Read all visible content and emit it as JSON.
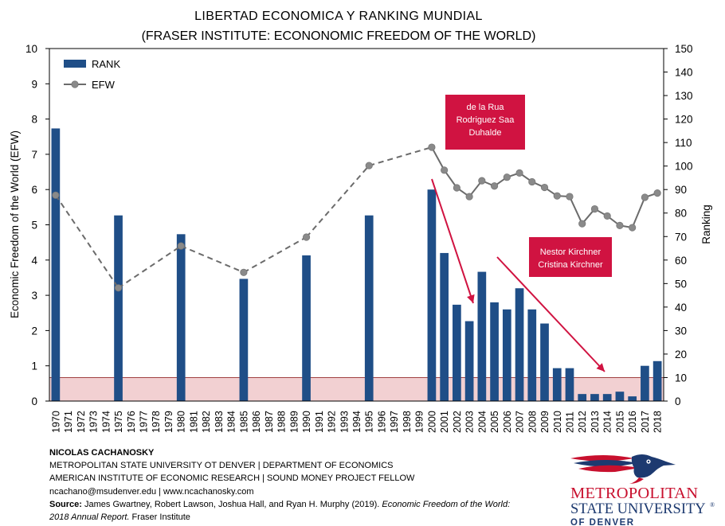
{
  "chart_data": {
    "type": "bar",
    "title": "LIBERTAD  ECONOMICA Y RANKING MUNDIAL",
    "subtitle": "(FRASER INSTITUTE: ECONONOMIC FREEDOM OF THE WORLD)",
    "ylabel_left": "Economic Freedom of the World (EFW)",
    "ylabel_right": "Ranking",
    "ylim_left": [
      0,
      10
    ],
    "ylim_right": [
      0,
      150
    ],
    "yticks_left": [
      "0",
      "1",
      "2",
      "3",
      "4",
      "5",
      "6",
      "7",
      "8",
      "9",
      "10"
    ],
    "yticks_right": [
      "0",
      "10",
      "20",
      "30",
      "40",
      "50",
      "60",
      "70",
      "80",
      "90",
      "100",
      "110",
      "120",
      "130",
      "140",
      "150"
    ],
    "grid": false,
    "legend_position": "top-left",
    "categories": [
      "1970",
      "1971",
      "1972",
      "1973",
      "1974",
      "1975",
      "1976",
      "1977",
      "1978",
      "1979",
      "1980",
      "1981",
      "1982",
      "1983",
      "1984",
      "1985",
      "1986",
      "1987",
      "1988",
      "1989",
      "1990",
      "1991",
      "1992",
      "1993",
      "1994",
      "1995",
      "1996",
      "1997",
      "1998",
      "1999",
      "2000",
      "2001",
      "2002",
      "2003",
      "2004",
      "2005",
      "2006",
      "2007",
      "2008",
      "2009",
      "2010",
      "2011",
      "2012",
      "2013",
      "2014",
      "2015",
      "2016",
      "2017",
      "2018"
    ],
    "series": [
      {
        "name": "RANK",
        "axis": "right",
        "kind": "bar",
        "color": "#1f4e87",
        "values": [
          116,
          null,
          null,
          null,
          null,
          79,
          null,
          null,
          null,
          null,
          71,
          null,
          null,
          null,
          null,
          52,
          null,
          null,
          null,
          null,
          62,
          null,
          null,
          null,
          null,
          79,
          null,
          null,
          null,
          null,
          90,
          63,
          41,
          34,
          55,
          42,
          39,
          48,
          39,
          33,
          14,
          14,
          3,
          3,
          3,
          4,
          2,
          15,
          17
        ]
      },
      {
        "name": "EFW",
        "axis": "left",
        "kind": "line",
        "color": "#8a8a8a",
        "values": [
          5.84,
          null,
          null,
          null,
          null,
          3.21,
          null,
          null,
          null,
          null,
          4.4,
          null,
          null,
          null,
          null,
          3.65,
          null,
          null,
          null,
          null,
          4.65,
          null,
          null,
          null,
          null,
          6.68,
          null,
          null,
          null,
          null,
          7.2,
          6.55,
          6.05,
          5.8,
          6.25,
          6.1,
          6.35,
          6.47,
          6.22,
          6.06,
          5.82,
          5.8,
          5.03,
          5.45,
          5.25,
          4.98,
          4.92,
          5.78,
          5.9
        ]
      }
    ],
    "reference_band": {
      "from": 0,
      "to": 10,
      "axis": "right",
      "color": "#f2d0d2"
    },
    "annotations": [
      {
        "lines": [
          "de la Rua",
          "Rodriguez Saa",
          "Duhalde"
        ],
        "color": "#d01341"
      },
      {
        "lines": [
          "Nestor Kirchner",
          "Cristina Kirchner"
        ],
        "color": "#d01341"
      }
    ]
  },
  "footer": {
    "author": "NICOLAS CACHANOSKY",
    "line1": "METROPOLITAN  STATE UNIVERSITY  OT DENVER   |  DEPARTMENT  OF ECONOMICS",
    "line2": "AMERICAN  INSTITUTE OF ECONOMIC RESEARCH   |  SOUND  MONEY PROJECT FELLOW",
    "line3": "ncachano@msudenver.edu  |  www.ncachanosky.com",
    "source_label": "Source:",
    "source_authors": " James Gwartney,  Robert Lawson, Joshua Hall, and Ryan H. Murphy (2019).",
    "source_title_1": " Economic Freedom of the World:",
    "source_title_2": "2018 Annual Report.",
    "source_publisher": "  Fraser Institute"
  },
  "logo": {
    "line1": "METROPOLITAN",
    "line2": "STATE UNIVERSITY",
    "line3": "OF DENVER",
    "trademark": "®",
    "colors": {
      "red": "#c8102e",
      "blue": "#1d3a70"
    }
  }
}
